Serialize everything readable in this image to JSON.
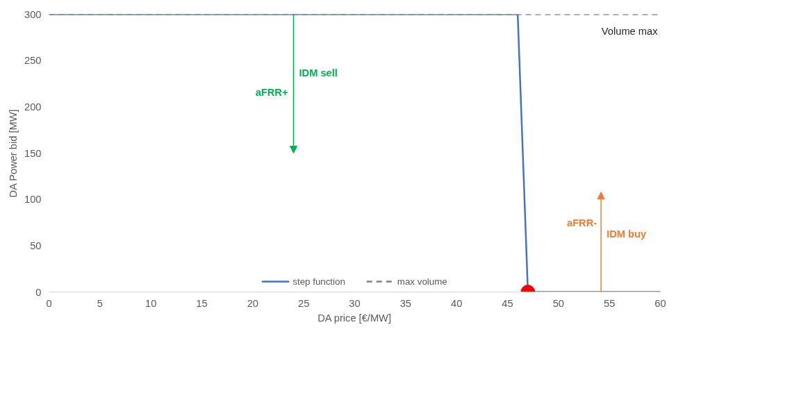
{
  "chart_data": {
    "type": "line",
    "xlabel": "DA price [€/MW]",
    "ylabel": "DA Power bid [MW]",
    "xlim": [
      0,
      60
    ],
    "xticks": [
      0,
      5,
      10,
      15,
      20,
      25,
      30,
      35,
      40,
      45,
      50,
      55,
      60
    ],
    "ylim": [
      0,
      300
    ],
    "yticks": [
      0,
      50,
      100,
      150,
      200,
      250,
      300
    ],
    "grid": false,
    "legend": "bottom",
    "marker": "none",
    "series": [
      {
        "name": "step function",
        "color": "#4472c4",
        "x": [
          0,
          46,
          47,
          60
        ],
        "values": [
          300,
          300,
          0,
          0
        ],
        "line_style": "solid"
      },
      {
        "name": "max volume",
        "color": "#808080",
        "x": [
          0,
          60
        ],
        "values": [
          300,
          300
        ],
        "line_style": "dashed"
      },
      {
        "type": "scatter",
        "color": "#ff0000",
        "x": [
          47
        ],
        "values": [
          0
        ],
        "marker": "circle"
      }
    ],
    "annotations": [
      "Volume max",
      "aFRR+",
      "IDM sell",
      "aFRR-",
      "IDM buy"
    ]
  }
}
